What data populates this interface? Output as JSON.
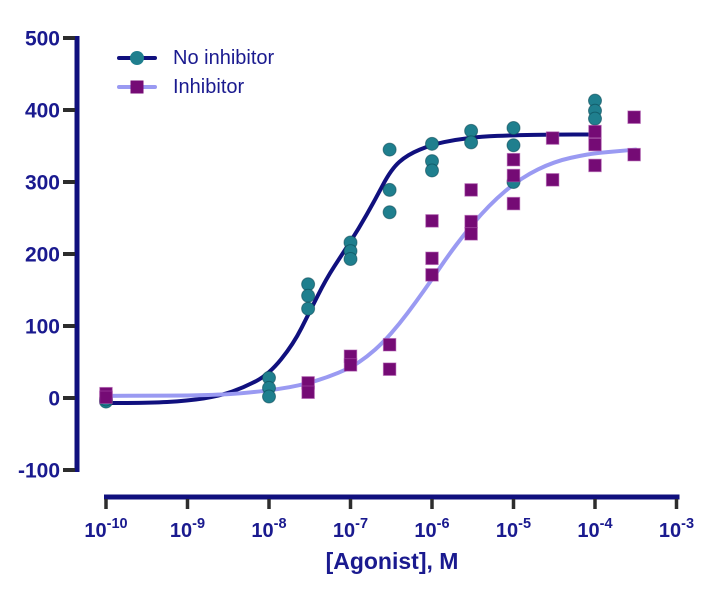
{
  "chart_data": {
    "type": "scatter",
    "subtype": "dose-response curves with sigmoidal fits (log scale)",
    "title": "",
    "xlabel": "[Agonist], M",
    "ylabel": "",
    "x_scale": "log10",
    "x_tick_exponents": [
      -10,
      -9,
      -8,
      -7,
      -6,
      -5,
      -4,
      -3
    ],
    "x_minor_tick_multiples": [
      2,
      3,
      4,
      5,
      6,
      7,
      8,
      9
    ],
    "xlim_log": [
      -10,
      -3
    ],
    "ylim": [
      -100,
      500
    ],
    "y_ticks": [
      500,
      400,
      300,
      200,
      100,
      0,
      -100
    ],
    "grid": false,
    "legend_position": "inside top-left",
    "series": [
      {
        "name": "No inhibitor",
        "marker": "circle",
        "marker_color": "#1F7F8E",
        "curve_color": "#10107E",
        "points": [
          {
            "log_x": -10,
            "replicates": [
              -5,
              -2
            ]
          },
          {
            "log_x": -8,
            "replicates": [
              28,
              14,
              2
            ]
          },
          {
            "log_x": -7.52,
            "replicates": [
              158,
              142,
              124
            ]
          },
          {
            "log_x": -7,
            "replicates": [
              216,
              204,
              193
            ]
          },
          {
            "log_x": -6.52,
            "replicates": [
              345,
              289,
              258
            ]
          },
          {
            "log_x": -6,
            "replicates": [
              353,
              329,
              316
            ]
          },
          {
            "log_x": -5.52,
            "replicates": [
              371,
              355
            ]
          },
          {
            "log_x": -5,
            "replicates": [
              375,
              351,
              300
            ]
          },
          {
            "log_x": -4,
            "replicates": [
              413,
              399,
              388
            ]
          }
        ],
        "fit_curve": [
          [
            -10,
            -7
          ],
          [
            -9.5,
            -7
          ],
          [
            -9.0,
            -4
          ],
          [
            -8.6,
            3
          ],
          [
            -8.3,
            15
          ],
          [
            -8.0,
            33
          ],
          [
            -7.7,
            75
          ],
          [
            -7.5,
            120
          ],
          [
            -7.3,
            165
          ],
          [
            -7.1,
            200
          ],
          [
            -6.9,
            235
          ],
          [
            -6.7,
            275
          ],
          [
            -6.5,
            318
          ],
          [
            -6.3,
            338
          ],
          [
            -6.0,
            352
          ],
          [
            -5.7,
            359
          ],
          [
            -5.4,
            363
          ],
          [
            -5.0,
            365
          ],
          [
            -4.5,
            366
          ],
          [
            -4.0,
            366
          ]
        ]
      },
      {
        "name": "Inhibitor",
        "marker": "square",
        "marker_color": "#750B75",
        "curve_color": "#9A9AF2",
        "points": [
          {
            "log_x": -10,
            "replicates": [
              6,
              1
            ]
          },
          {
            "log_x": -7.52,
            "replicates": [
              21,
              8
            ]
          },
          {
            "log_x": -7,
            "replicates": [
              58,
              46
            ]
          },
          {
            "log_x": -6.52,
            "replicates": [
              74,
              40
            ]
          },
          {
            "log_x": -6,
            "replicates": [
              246,
              194,
              171
            ]
          },
          {
            "log_x": -5.52,
            "replicates": [
              289,
              245,
              228
            ]
          },
          {
            "log_x": -5,
            "replicates": [
              331,
              309,
              270
            ]
          },
          {
            "log_x": -4.52,
            "replicates": [
              361,
              303
            ]
          },
          {
            "log_x": -4,
            "replicates": [
              370,
              352,
              323
            ]
          },
          {
            "log_x": -3.52,
            "replicates": [
              390,
              338
            ]
          }
        ],
        "fit_curve": [
          [
            -10,
            3
          ],
          [
            -9.5,
            3
          ],
          [
            -9.0,
            3.5
          ],
          [
            -8.5,
            5
          ],
          [
            -8.2,
            8
          ],
          [
            -7.9,
            12
          ],
          [
            -7.6,
            18
          ],
          [
            -7.3,
            28
          ],
          [
            -7.0,
            42
          ],
          [
            -6.8,
            57
          ],
          [
            -6.6,
            77
          ],
          [
            -6.4,
            103
          ],
          [
            -6.2,
            133
          ],
          [
            -6.0,
            165
          ],
          [
            -5.8,
            198
          ],
          [
            -5.6,
            228
          ],
          [
            -5.4,
            255
          ],
          [
            -5.2,
            278
          ],
          [
            -5.0,
            297
          ],
          [
            -4.8,
            312
          ],
          [
            -4.6,
            323
          ],
          [
            -4.4,
            331
          ],
          [
            -4.2,
            336
          ],
          [
            -4.0,
            340
          ],
          [
            -3.7,
            343
          ],
          [
            -3.5,
            345
          ]
        ]
      }
    ]
  },
  "colors": {
    "background": "#FFFFFF",
    "axis_line": "#10107E",
    "axis_text": "#1A1A8F",
    "tick_marks": "#2D2D2D",
    "no_inhibitor_marker": "#1F7F8E",
    "no_inhibitor_curve": "#10107E",
    "inhibitor_marker": "#750B75",
    "inhibitor_curve": "#9A9AF2"
  }
}
